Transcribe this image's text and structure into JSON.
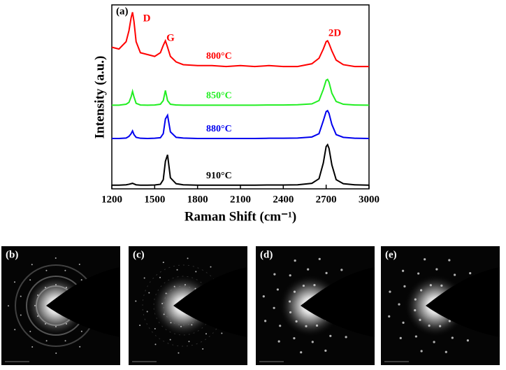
{
  "chart_data": {
    "type": "line",
    "x_label": "Raman Shift (cm⁻¹)",
    "y_label": "Intensity (a.u.)",
    "annotations": [
      "(a)",
      "D",
      "G",
      "2D"
    ],
    "x": [
      1200,
      1250,
      1300,
      1320,
      1335,
      1345,
      1355,
      1370,
      1400,
      1450,
      1500,
      1540,
      1560,
      1575,
      1590,
      1610,
      1650,
      1700,
      1800,
      1900,
      2000,
      2100,
      2200,
      2300,
      2400,
      2500,
      2600,
      2650,
      2680,
      2700,
      2710,
      2720,
      2740,
      2770,
      2820,
      2900,
      3000
    ],
    "xlim": [
      1200,
      3000
    ],
    "xticks": [
      1200,
      1500,
      1800,
      2100,
      2400,
      2700,
      3000
    ],
    "ylim": [
      0,
      10
    ],
    "series": [
      {
        "name": "800°C",
        "color": "#ff0000",
        "values": [
          7.7,
          7.6,
          8.0,
          8.6,
          9.3,
          9.6,
          9.1,
          8.0,
          7.4,
          7.3,
          7.2,
          7.4,
          7.8,
          8.05,
          7.7,
          7.2,
          6.9,
          6.75,
          6.7,
          6.7,
          6.65,
          6.7,
          6.65,
          6.7,
          6.65,
          6.65,
          6.8,
          7.1,
          7.6,
          8.0,
          8.05,
          7.9,
          7.5,
          7.0,
          6.75,
          6.65,
          6.65
        ]
      },
      {
        "name": "850°C",
        "color": "#22ee22",
        "values": [
          4.55,
          4.55,
          4.6,
          4.7,
          5.0,
          5.3,
          5.0,
          4.65,
          4.56,
          4.55,
          4.56,
          4.6,
          4.8,
          5.35,
          4.8,
          4.6,
          4.56,
          4.55,
          4.55,
          4.55,
          4.55,
          4.55,
          4.55,
          4.56,
          4.56,
          4.57,
          4.62,
          4.8,
          5.4,
          5.9,
          5.95,
          5.8,
          5.2,
          4.75,
          4.6,
          4.56,
          4.55
        ]
      },
      {
        "name": "880°C",
        "color": "#0000ee",
        "values": [
          2.74,
          2.74,
          2.76,
          2.85,
          3.0,
          3.15,
          2.95,
          2.8,
          2.75,
          2.74,
          2.75,
          2.78,
          3.0,
          3.8,
          4.0,
          3.1,
          2.8,
          2.76,
          2.74,
          2.74,
          2.74,
          2.74,
          2.74,
          2.75,
          2.75,
          2.76,
          2.82,
          3.0,
          3.7,
          4.2,
          4.25,
          4.1,
          3.5,
          2.95,
          2.8,
          2.75,
          2.74
        ]
      },
      {
        "name": "910°C",
        "color": "#000000",
        "values": [
          0.2,
          0.2,
          0.22,
          0.25,
          0.28,
          0.3,
          0.27,
          0.22,
          0.2,
          0.2,
          0.21,
          0.25,
          0.5,
          1.5,
          1.85,
          0.6,
          0.28,
          0.22,
          0.2,
          0.2,
          0.2,
          0.2,
          0.2,
          0.21,
          0.21,
          0.22,
          0.3,
          0.55,
          1.4,
          2.3,
          2.4,
          2.2,
          1.3,
          0.5,
          0.28,
          0.22,
          0.2
        ]
      }
    ]
  },
  "panels": [
    "(b)",
    "(c)",
    "(d)",
    "(e)"
  ]
}
